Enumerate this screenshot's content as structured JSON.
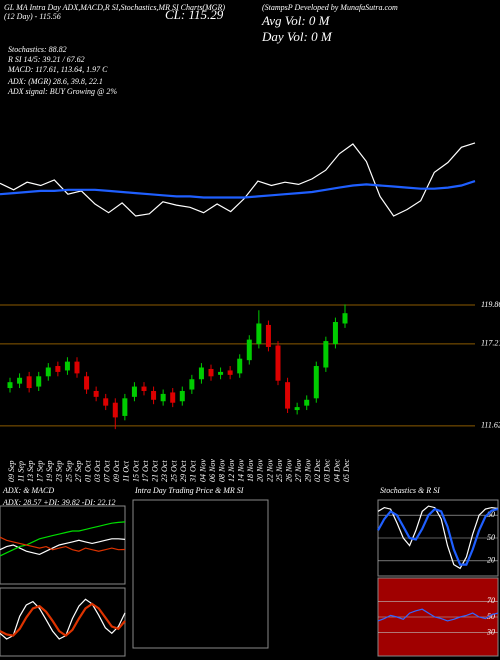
{
  "header": {
    "line1": "GL MA Intra Day ADX,MACD,R  SI,Stochastics,MR  SI Charts(MGR)",
    "line2": "(12 Day) - 115.56",
    "close": "CL: 115.29",
    "developer": "(StampsP Developed by MunafaSutra.com",
    "avg_vol": "Avg Vol: 0  M",
    "day_vol": "Day Vol: 0   M",
    "stoch": "Stochastics: 88.82",
    "rsi": "R   SI 14/5: 39.21 / 67.62",
    "macd": "MACD: 117.61, 113.64, 1.97 C",
    "adx": "ADX:          (MGR) 28.6, 39.8, 22.1",
    "adx_signal": "ADX  signal:                    BUY Growing @ 2%"
  },
  "chart_data": [
    {
      "type": "line",
      "ylim": [
        110,
        121
      ],
      "series": [
        {
          "color": "#ffffff",
          "values": [
            115.2,
            114.6,
            115.3,
            115.0,
            115.5,
            114.2,
            114.5,
            113.3,
            112.5,
            113.4,
            112.2,
            112.4,
            113.5,
            113.2,
            113.0,
            112.5,
            113.3,
            112.6,
            113.8,
            115.4,
            115.0,
            115.3,
            115.1,
            115.6,
            116.4,
            117.9,
            118.8,
            117.2,
            114.0,
            112.2,
            112.8,
            113.6,
            116.2,
            117.1,
            118.5,
            118.9
          ]
        },
        {
          "color": "#1f5fff",
          "values": [
            114.2,
            114.3,
            114.4,
            114.5,
            114.5,
            114.6,
            114.6,
            114.6,
            114.5,
            114.4,
            114.3,
            114.2,
            114.1,
            114.0,
            114.0,
            113.9,
            113.9,
            113.9,
            113.9,
            114.0,
            114.1,
            114.2,
            114.3,
            114.4,
            114.6,
            114.8,
            115.0,
            115.1,
            115.0,
            114.9,
            114.8,
            114.7,
            114.7,
            114.8,
            115.0,
            115.4
          ]
        }
      ]
    },
    {
      "type": "candlestick",
      "ylim": [
        111,
        120.2
      ],
      "yticks": [
        119.86,
        117.21,
        111.62
      ],
      "grid_color": "#8b5a00",
      "up_color": "#00cc00",
      "down_color": "#dd0000",
      "categories": [
        "09 Sep",
        "11 Sep",
        "13 Sep",
        "17 Sep",
        "19 Sep",
        "23 Sep",
        "25 Sep",
        "27 Sep",
        "01 Oct",
        "03 Oct",
        "07 Oct",
        "09 Oct",
        "11 Oct",
        "15 Oct",
        "17 Oct",
        "21 Oct",
        "23 Oct",
        "25 Oct",
        "29 Oct",
        "31 Oct",
        "04 Nov",
        "06 Nov",
        "08 Nov",
        "12 Nov",
        "14 Nov",
        "18 Nov",
        "20 Nov",
        "22 Nov",
        "25 Nov",
        "26 Nov",
        "27 Nov",
        "29 Nov",
        "02 Dec",
        "03 Dec",
        "04 Dec",
        "05 Dec"
      ],
      "open": [
        114.2,
        114.5,
        115.0,
        114.3,
        115.0,
        115.7,
        115.4,
        116.0,
        115.0,
        114.0,
        113.5,
        113.2,
        112.3,
        113.6,
        114.3,
        114.0,
        113.3,
        113.9,
        113.3,
        114.1,
        114.8,
        115.5,
        115.1,
        115.4,
        115.2,
        116.1,
        117.2,
        118.5,
        117.1,
        114.6,
        112.7,
        113.0,
        113.5,
        115.6,
        117.2,
        118.6
      ],
      "high": [
        114.9,
        115.2,
        115.3,
        115.3,
        115.9,
        116.0,
        116.3,
        116.3,
        115.3,
        114.3,
        113.8,
        113.5,
        113.8,
        114.6,
        114.6,
        114.3,
        114.1,
        114.2,
        114.3,
        115.1,
        115.9,
        115.8,
        115.6,
        115.7,
        116.5,
        117.8,
        119.5,
        118.8,
        117.4,
        114.9,
        113.2,
        113.7,
        116.0,
        117.7,
        119.0,
        119.9
      ],
      "low": [
        113.9,
        114.2,
        113.9,
        114.0,
        114.7,
        115.0,
        115.1,
        114.9,
        113.8,
        113.3,
        112.7,
        111.4,
        112.0,
        113.3,
        113.7,
        113.1,
        113.0,
        112.9,
        113.0,
        113.8,
        114.5,
        114.7,
        114.8,
        114.8,
        114.9,
        115.8,
        116.9,
        116.7,
        114.4,
        112.5,
        112.4,
        112.7,
        113.2,
        115.3,
        116.9,
        118.3
      ],
      "close": [
        114.6,
        114.9,
        114.2,
        115.0,
        115.6,
        115.3,
        116.0,
        115.2,
        114.1,
        113.6,
        113.0,
        112.2,
        113.5,
        114.3,
        114.0,
        113.4,
        113.8,
        113.2,
        114.0,
        114.8,
        115.6,
        115.0,
        115.3,
        115.1,
        116.2,
        117.5,
        118.6,
        117.0,
        114.7,
        112.8,
        112.9,
        113.4,
        115.7,
        117.4,
        118.7,
        119.3
      ]
    },
    {
      "type": "line",
      "title": "ADX: & MACD",
      "subtitle": "ADX: 28.57  +DI: 39.82  -DI: 22.12",
      "ylim": [
        0,
        50
      ],
      "series": [
        {
          "color": "#ffffff",
          "values": [
            22,
            24,
            25,
            23,
            21,
            20,
            19,
            21,
            23,
            25,
            26,
            27,
            28,
            27,
            26,
            27,
            28,
            29,
            29,
            28.57
          ]
        },
        {
          "color": "#00dd00",
          "values": [
            18,
            20,
            22,
            24,
            25,
            27,
            29,
            30,
            31,
            32,
            33,
            34,
            34,
            35,
            36,
            37,
            38,
            39,
            39.5,
            39.82
          ]
        },
        {
          "color": "#dd3300",
          "values": [
            30,
            28,
            27,
            26,
            25,
            24,
            23,
            24,
            22,
            23,
            24,
            22,
            21,
            23,
            22,
            21,
            22,
            23,
            22,
            22.12
          ]
        }
      ]
    },
    {
      "type": "line",
      "ylim": [
        -3,
        3
      ],
      "series": [
        {
          "color": "#ffffff",
          "values": [
            -1,
            -1.5,
            -1.2,
            0.5,
            1.5,
            1.8,
            1.2,
            0.2,
            -0.8,
            -1.5,
            -1.2,
            0.3,
            1.4,
            2.0,
            1.6,
            0.6,
            -0.5,
            -1.0,
            -0.4,
            0.8
          ]
        },
        {
          "color": "#dd3300",
          "values": [
            -0.8,
            -1.1,
            -1.2,
            -0.6,
            0.4,
            1.2,
            1.4,
            0.9,
            0.1,
            -0.8,
            -1.2,
            -0.7,
            0.3,
            1.2,
            1.6,
            1.2,
            0.4,
            -0.4,
            -0.6,
            0.1
          ]
        }
      ]
    },
    {
      "type": "line",
      "title": "Intra Day Trading Price & MR  SI",
      "series": []
    },
    {
      "type": "line",
      "title": "Stochastics & R  SI",
      "ylim": [
        0,
        100
      ],
      "yticks": [
        80,
        50,
        20
      ],
      "series": [
        {
          "color": "#ffffff",
          "values": [
            85,
            90,
            88,
            70,
            50,
            40,
            60,
            85,
            92,
            90,
            75,
            40,
            15,
            10,
            25,
            55,
            80,
            88,
            90,
            88.82
          ]
        },
        {
          "color": "#1f5fff",
          "values": [
            60,
            75,
            85,
            80,
            65,
            50,
            48,
            62,
            80,
            88,
            85,
            65,
            35,
            15,
            15,
            35,
            60,
            78,
            86,
            88
          ]
        }
      ]
    },
    {
      "type": "line",
      "ylim": [
        0,
        100
      ],
      "yticks": [
        70,
        50,
        30
      ],
      "background": "#a00000",
      "series": [
        {
          "color": "#3366ff",
          "values": [
            45,
            48,
            52,
            50,
            47,
            55,
            58,
            60,
            55,
            50,
            48,
            45,
            47,
            50,
            52,
            55,
            50,
            48,
            53,
            55
          ]
        }
      ]
    }
  ]
}
